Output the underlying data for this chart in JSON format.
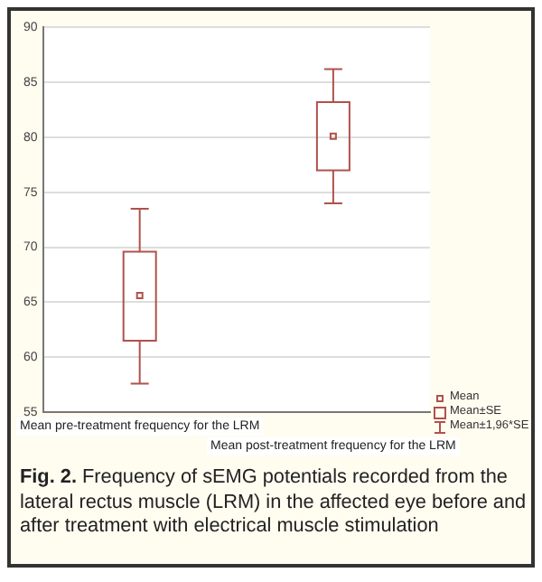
{
  "chart_data": {
    "type": "box",
    "categories": [
      "Mean pre-treatment frequency for the LRM",
      "Mean post-treatment frequency for the LRM"
    ],
    "color": "#b0524c",
    "boxes": [
      {
        "low": 57.6,
        "q1": 61.5,
        "q3": 69.6,
        "high": 73.5,
        "mean": 65.6
      },
      {
        "low": 74,
        "q1": 77,
        "q3": 83.2,
        "high": 86.2,
        "mean": 80.1
      }
    ],
    "ylim": [
      55,
      90
    ],
    "yticks": [
      55,
      60,
      65,
      70,
      75,
      80,
      85,
      90
    ],
    "grid": "y",
    "annotations": [
      "Mean",
      "Mean±SE",
      "Mean±1,96*SE",
      "Fig. 2.",
      "Frequency of sEMG potentials recorded from the lateral rectus muscle (LRM) in the affected eye before and after treatment with electrical muscle stimulation"
    ]
  }
}
